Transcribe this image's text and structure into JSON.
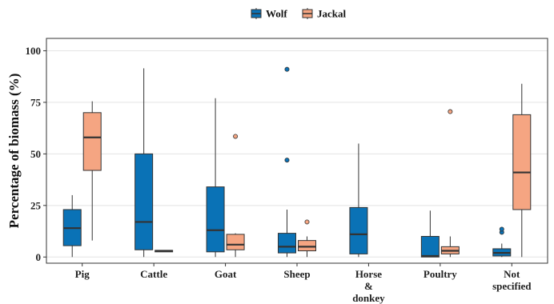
{
  "chart_data": {
    "type": "box",
    "title": "",
    "xlabel": "",
    "ylabel": "Percentage of biomass (%)",
    "ylim": [
      -3,
      106
    ],
    "y_ticks": [
      0,
      25,
      50,
      75,
      100
    ],
    "grid": true,
    "legend_position": "top",
    "categories": [
      [
        "Pig"
      ],
      [
        "Cattle"
      ],
      [
        "Goat"
      ],
      [
        "Sheep"
      ],
      [
        "Horse",
        "&",
        "donkey"
      ],
      [
        "Poultry"
      ],
      [
        "Not",
        "specified"
      ]
    ],
    "series": [
      {
        "name": "Wolf",
        "color": "#0a72b6",
        "boxes": [
          {
            "category": "Pig",
            "whisker_low": 0,
            "q1": 5.5,
            "median": 14,
            "q3": 23,
            "whisker_high": 30,
            "outliers": []
          },
          {
            "category": "Cattle",
            "whisker_low": 0,
            "q1": 3.5,
            "median": 17,
            "q3": 50,
            "whisker_high": 91.5,
            "outliers": []
          },
          {
            "category": "Goat",
            "whisker_low": 0,
            "q1": 2.5,
            "median": 13,
            "q3": 34,
            "whisker_high": 77,
            "outliers": []
          },
          {
            "category": "Sheep",
            "whisker_low": 0,
            "q1": 2,
            "median": 5,
            "q3": 11.5,
            "whisker_high": 23,
            "outliers": [
              47,
              91
            ]
          },
          {
            "category": "Horse & donkey",
            "whisker_low": 0,
            "q1": 1.5,
            "median": 11,
            "q3": 24,
            "whisker_high": 55,
            "outliers": []
          },
          {
            "category": "Poultry",
            "whisker_low": 0,
            "q1": 0,
            "median": 0.5,
            "q3": 10,
            "whisker_high": 22.5,
            "outliers": []
          },
          {
            "category": "Not specified",
            "whisker_low": 0,
            "q1": 0.5,
            "median": 2,
            "q3": 4,
            "whisker_high": 6.5,
            "outliers": [
              12,
              13.5
            ]
          }
        ]
      },
      {
        "name": "Jackal",
        "color": "#f5a582",
        "boxes": [
          {
            "category": "Pig",
            "whisker_low": 8,
            "q1": 42,
            "median": 58,
            "q3": 70,
            "whisker_high": 75.5,
            "outliers": []
          },
          {
            "category": "Cattle",
            "whisker_low": 2.5,
            "q1": 2.5,
            "median": 3,
            "q3": 3.2,
            "whisker_high": 3.2,
            "outliers": []
          },
          {
            "category": "Goat",
            "whisker_low": 0,
            "q1": 3.5,
            "median": 6,
            "q3": 11,
            "whisker_high": 11.5,
            "outliers": [
              58.5
            ]
          },
          {
            "category": "Sheep",
            "whisker_low": 0,
            "q1": 3,
            "median": 5,
            "q3": 8,
            "whisker_high": 10,
            "outliers": [
              17
            ]
          },
          {
            "category": "Poultry",
            "whisker_low": 0,
            "q1": 1.5,
            "median": 3,
            "q3": 5,
            "whisker_high": 10,
            "outliers": [
              70.5
            ]
          },
          {
            "category": "Not specified",
            "whisker_low": 0,
            "q1": 23,
            "median": 41,
            "q3": 69,
            "whisker_high": 84,
            "outliers": []
          }
        ]
      }
    ]
  }
}
